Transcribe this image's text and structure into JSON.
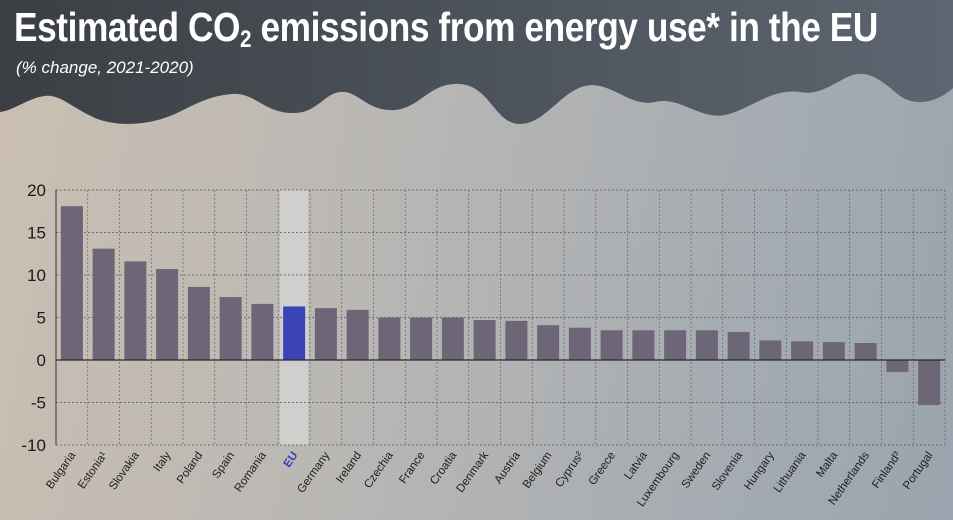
{
  "header": {
    "title_prefix": "Estimated CO",
    "title_sub": "2",
    "title_suffix": " emissions from energy use* in the EU",
    "subtitle": "(% change, 2021-2020)"
  },
  "colors": {
    "bar": "#6c6677",
    "highlight_bar": "#3a44b6",
    "highlight_band": "#d2d2d2",
    "highlight_label": "#3344bb",
    "cloud": "#454a52"
  },
  "chart_data": {
    "type": "bar",
    "title": "Estimated CO2 emissions from energy use* in the EU",
    "subtitle": "(% change, 2021-2020)",
    "categories": [
      "Bulgaria",
      "Estonia¹",
      "Slovakia",
      "Italy",
      "Poland",
      "Spain",
      "Romania",
      "EU",
      "Germany",
      "Ireland",
      "Czechia",
      "France",
      "Croatia",
      "Denmark",
      "Austria",
      "Belgium",
      "Cyprus²",
      "Greece",
      "Latvia",
      "Luxembourg",
      "Sweden",
      "Slovenia",
      "Hungary",
      "Lithuania",
      "Malta",
      "Netherlands",
      "Finland³",
      "Portugal"
    ],
    "values": [
      18.1,
      13.1,
      11.6,
      10.7,
      8.6,
      7.4,
      6.6,
      6.3,
      6.1,
      5.9,
      5.0,
      5.0,
      5.0,
      4.7,
      4.6,
      4.1,
      3.8,
      3.5,
      3.5,
      3.5,
      3.5,
      3.3,
      2.3,
      2.2,
      2.1,
      2.0,
      -1.4,
      -5.3
    ],
    "highlight": "EU",
    "yticks": [
      20,
      15,
      10,
      5,
      0,
      -5,
      -10
    ],
    "ylim": [
      -10,
      20
    ],
    "xlabel": "",
    "ylabel": "",
    "grid": true
  }
}
